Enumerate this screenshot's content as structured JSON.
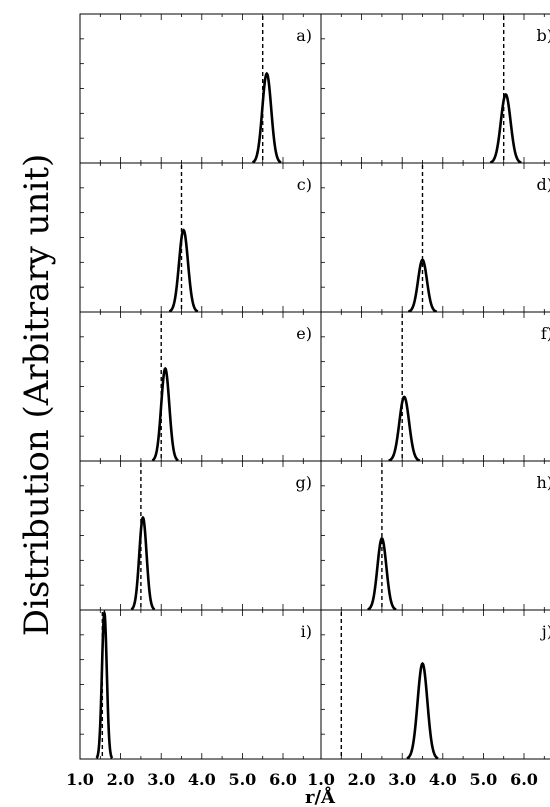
{
  "chart_data": {
    "type": "line",
    "ylabel": "Distribution (Arbitrary unit)",
    "xlabel": "r/Å",
    "xlim": [
      1.0,
      7.0
    ],
    "x_ticks": [
      "1.0",
      "2.0",
      "3.0",
      "4.0",
      "5.0",
      "6.0"
    ],
    "grid": false,
    "panels": [
      {
        "label": "a)",
        "reference_r": 5.5,
        "peak_r": 5.6,
        "peak_height": 0.6,
        "width": 0.11
      },
      {
        "label": "b)",
        "reference_r": 5.5,
        "peak_r": 5.55,
        "peak_height": 0.46,
        "width": 0.12
      },
      {
        "label": "c)",
        "reference_r": 3.5,
        "peak_r": 3.55,
        "peak_height": 0.55,
        "width": 0.11
      },
      {
        "label": "d)",
        "reference_r": 3.5,
        "peak_r": 3.5,
        "peak_height": 0.35,
        "width": 0.11
      },
      {
        "label": "e)",
        "reference_r": 3.0,
        "peak_r": 3.1,
        "peak_height": 0.62,
        "width": 0.1
      },
      {
        "label": "f)",
        "reference_r": 3.0,
        "peak_r": 3.05,
        "peak_height": 0.43,
        "width": 0.12
      },
      {
        "label": "g)",
        "reference_r": 2.5,
        "peak_r": 2.55,
        "peak_height": 0.62,
        "width": 0.09
      },
      {
        "label": "h)",
        "reference_r": 2.5,
        "peak_r": 2.5,
        "peak_height": 0.48,
        "width": 0.11
      },
      {
        "label": "i)",
        "reference_r": 1.55,
        "peak_r": 1.6,
        "peak_height": 0.98,
        "width": 0.06
      },
      {
        "label": "j)",
        "reference_r": 1.5,
        "peak_r": 3.5,
        "peak_height": 0.64,
        "width": 0.12
      }
    ]
  }
}
